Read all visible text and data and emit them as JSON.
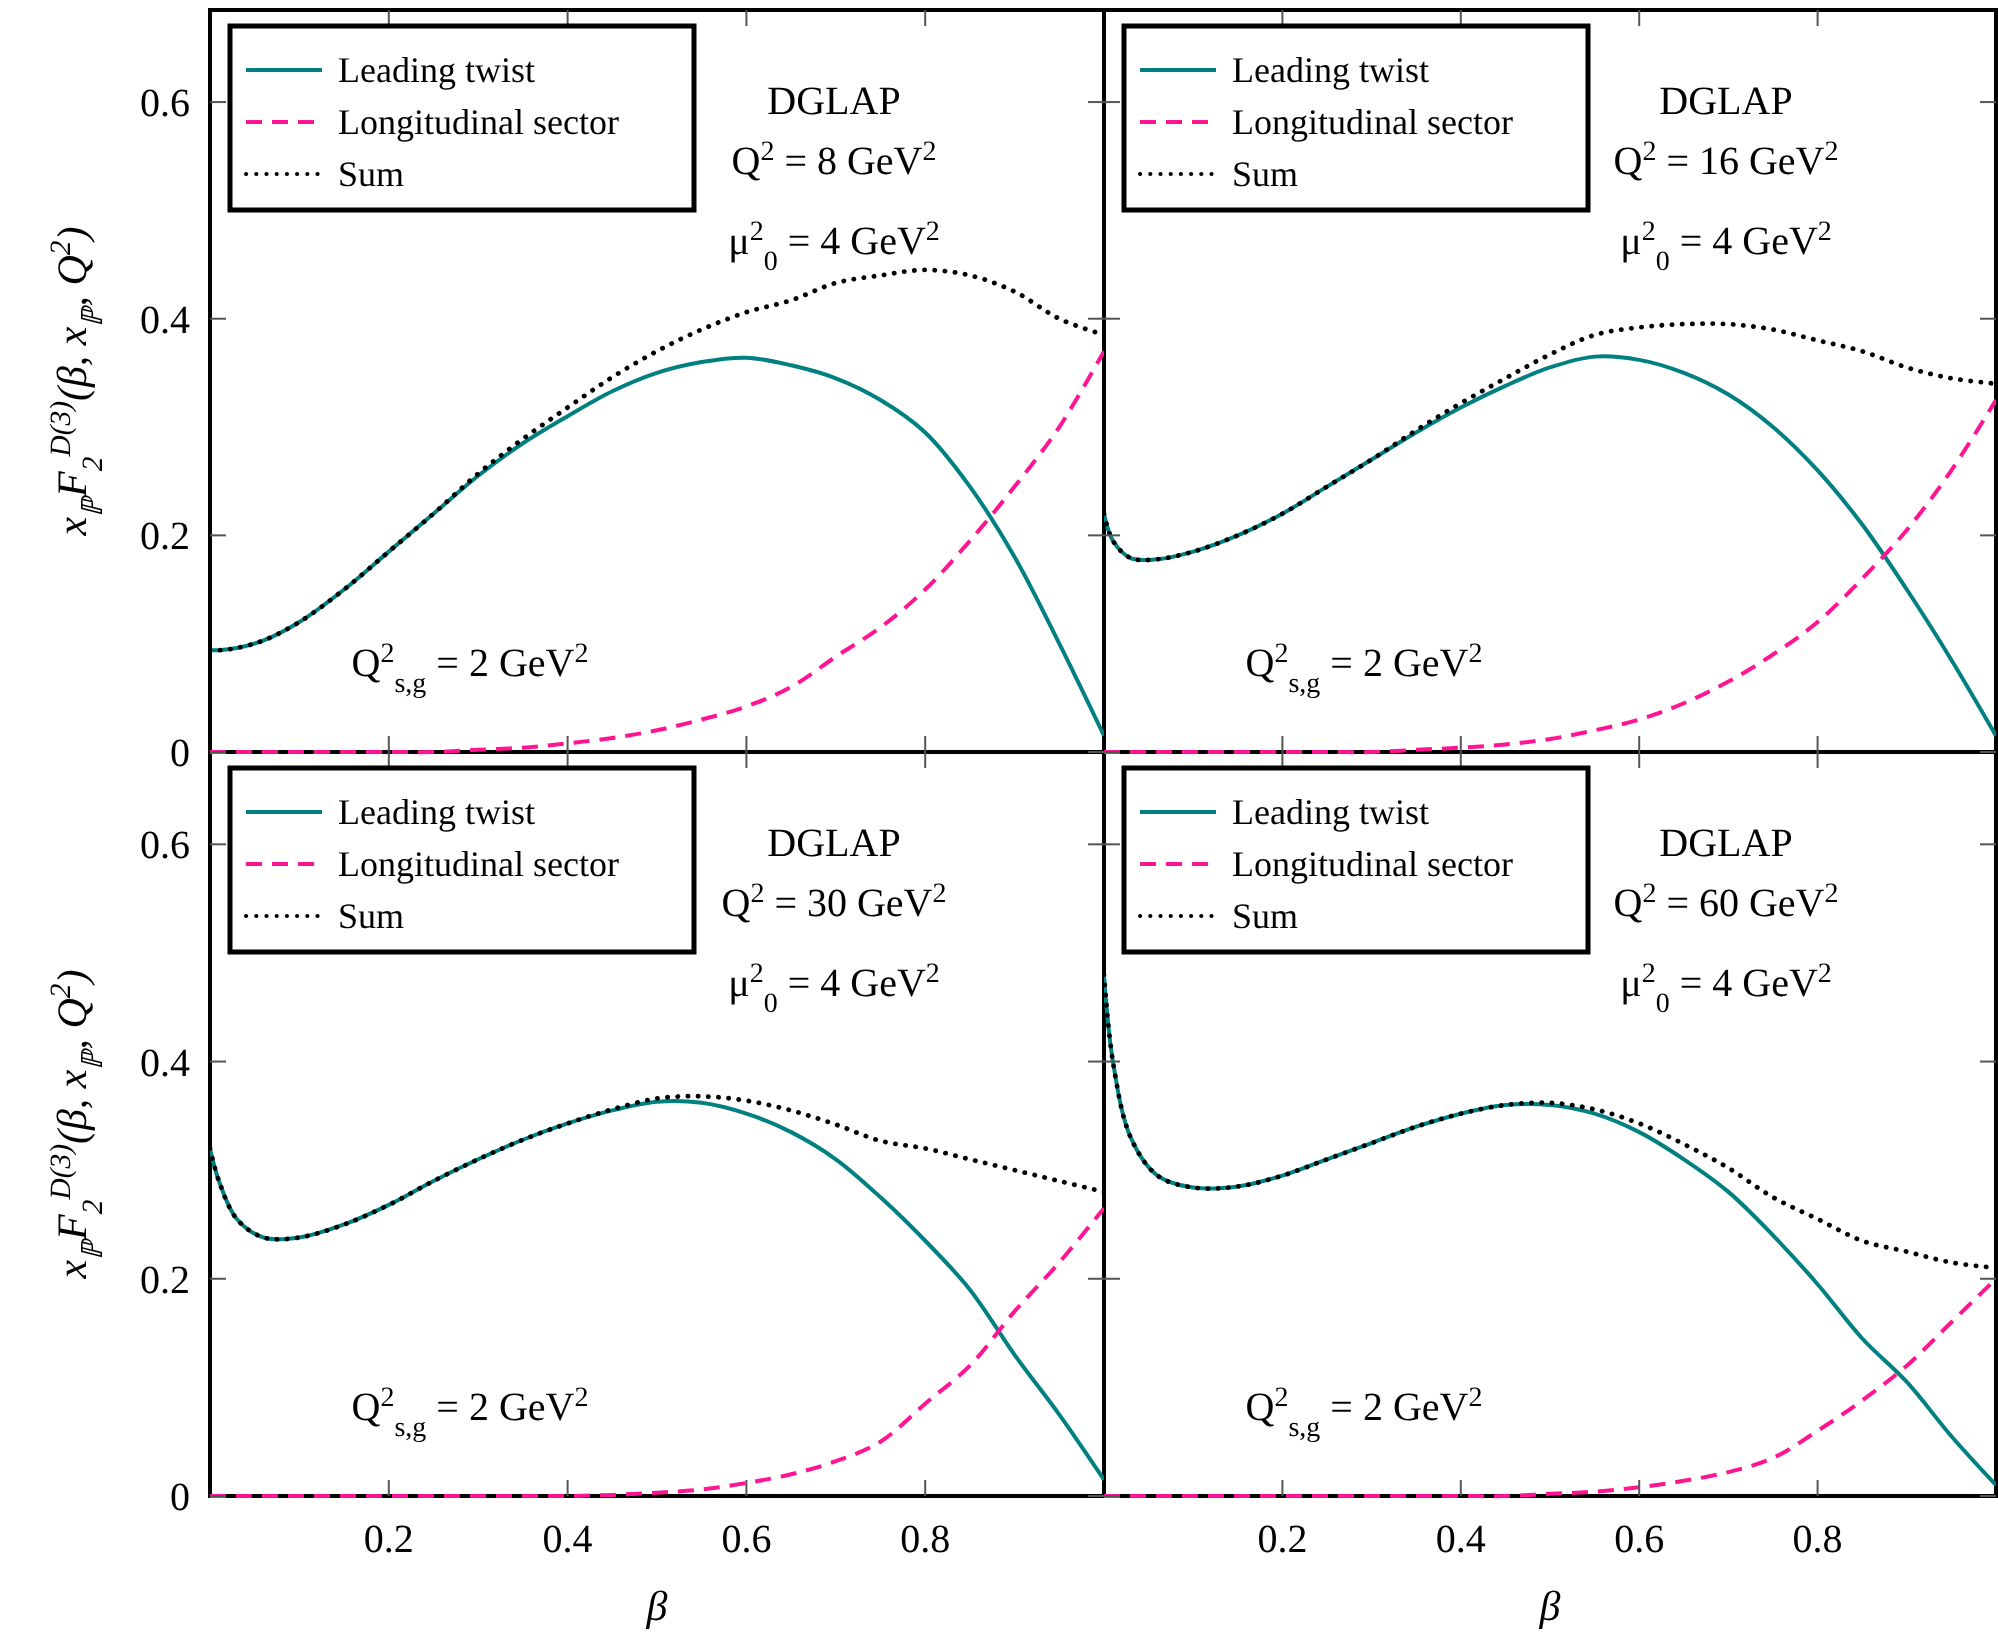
{
  "chart_data": [
    {
      "type": "line",
      "ylabel": "x$_{ℙ}$F$_{2}$$^{D(3)}$(β, x$_{ℙ}$, Q$^{2}$)",
      "x": [
        0,
        0.01,
        0.03,
        0.06,
        0.1,
        0.15,
        0.2,
        0.25,
        0.3,
        0.35,
        0.4,
        0.45,
        0.5,
        0.55,
        0.6,
        0.65,
        0.7,
        0.75,
        0.8,
        0.85,
        0.9,
        0.95,
        1
      ],
      "xlim": [
        0,
        1
      ],
      "ylim": [
        0,
        0.685
      ],
      "xticks": [
        0.2,
        0.4,
        0.6,
        0.8
      ],
      "yticks": [
        0,
        0.2,
        0.4,
        0.6
      ],
      "tick_labels": "y",
      "legend": "top left",
      "annotations": [
        "DGLAP",
        "Q$^{2}$ = 8 GeV$^{2}$",
        "μ$^{2}$$_{0}$ = 4 GeV$^{2}$",
        "Q$^{2}$$_{s,g}$ = 2 GeV$^{2}$"
      ],
      "series": [
        {
          "name": "Leading twist",
          "color": "#008080",
          "line_style": "solid",
          "values": [
            0.094,
            0.094,
            0.096,
            0.103,
            0.12,
            0.15,
            0.185,
            0.22,
            0.255,
            0.285,
            0.31,
            0.333,
            0.35,
            0.36,
            0.364,
            0.357,
            0.345,
            0.325,
            0.295,
            0.245,
            0.18,
            0.1,
            0.015
          ]
        },
        {
          "name": "Longitudinal sector",
          "color": "#ff1493",
          "line_style": "dashed",
          "values": [
            0,
            0,
            0,
            0,
            0,
            0,
            0,
            0,
            0.002,
            0.004,
            0.008,
            0.013,
            0.02,
            0.03,
            0.042,
            0.06,
            0.088,
            0.115,
            0.15,
            0.195,
            0.245,
            0.3,
            0.37
          ]
        },
        {
          "name": "Sum",
          "color": "#000000",
          "line_style": "dotted",
          "values": [
            0.094,
            0.094,
            0.096,
            0.103,
            0.12,
            0.15,
            0.185,
            0.22,
            0.257,
            0.289,
            0.318,
            0.346,
            0.37,
            0.39,
            0.406,
            0.417,
            0.433,
            0.44,
            0.445,
            0.44,
            0.425,
            0.4,
            0.385
          ]
        }
      ]
    },
    {
      "type": "line",
      "x": [
        0,
        0.01,
        0.03,
        0.06,
        0.1,
        0.15,
        0.2,
        0.25,
        0.3,
        0.35,
        0.4,
        0.45,
        0.5,
        0.55,
        0.6,
        0.65,
        0.7,
        0.75,
        0.8,
        0.85,
        0.9,
        0.95,
        1
      ],
      "xlim": [
        0,
        1
      ],
      "ylim": [
        0,
        0.685
      ],
      "xticks": [
        0.2,
        0.4,
        0.6,
        0.8
      ],
      "yticks": [
        0,
        0.2,
        0.4,
        0.6
      ],
      "tick_labels": false,
      "legend": "top left",
      "annotations": [
        "DGLAP",
        "Q$^{2}$ = 16 GeV$^{2}$",
        "μ$^{2}$$_{0}$ = 4 GeV$^{2}$",
        "Q$^{2}$$_{s,g}$ = 2 GeV$^{2}$"
      ],
      "series": [
        {
          "name": "Leading twist",
          "color": "#008080",
          "line_style": "solid",
          "values": [
            0.22,
            0.195,
            0.179,
            0.178,
            0.185,
            0.2,
            0.22,
            0.245,
            0.27,
            0.295,
            0.318,
            0.338,
            0.355,
            0.365,
            0.362,
            0.35,
            0.33,
            0.3,
            0.26,
            0.21,
            0.15,
            0.085,
            0.015
          ]
        },
        {
          "name": "Longitudinal sector",
          "color": "#ff1493",
          "line_style": "dashed",
          "values": [
            0,
            0,
            0,
            0,
            0,
            0,
            0,
            0,
            0,
            0.002,
            0.004,
            0.007,
            0.012,
            0.02,
            0.03,
            0.045,
            0.065,
            0.09,
            0.12,
            0.16,
            0.205,
            0.26,
            0.325
          ]
        },
        {
          "name": "Sum",
          "color": "#000000",
          "line_style": "dotted",
          "values": [
            0.22,
            0.195,
            0.179,
            0.178,
            0.185,
            0.2,
            0.22,
            0.245,
            0.27,
            0.297,
            0.322,
            0.345,
            0.367,
            0.385,
            0.392,
            0.395,
            0.395,
            0.39,
            0.38,
            0.37,
            0.355,
            0.345,
            0.34
          ]
        }
      ]
    },
    {
      "type": "line",
      "xlabel": "β",
      "ylabel": "x$_{ℙ}$F$_{2}$$^{D(3)}$(β, x$_{ℙ}$, Q$^{2}$)",
      "x": [
        0,
        0.01,
        0.03,
        0.06,
        0.1,
        0.15,
        0.2,
        0.25,
        0.3,
        0.35,
        0.4,
        0.45,
        0.5,
        0.55,
        0.6,
        0.65,
        0.7,
        0.75,
        0.8,
        0.85,
        0.9,
        0.95,
        1
      ],
      "xlim": [
        0,
        1
      ],
      "ylim": [
        0,
        0.685
      ],
      "xticks": [
        0.2,
        0.4,
        0.6,
        0.8
      ],
      "yticks": [
        0,
        0.2,
        0.4,
        0.6
      ],
      "legend": "top left",
      "annotations": [
        "DGLAP",
        "Q$^{2}$ = 30 GeV$^{2}$",
        "μ$^{2}$$_{0}$ = 4 GeV$^{2}$",
        "Q$^{2}$$_{s,g}$ = 2 GeV$^{2}$"
      ],
      "series": [
        {
          "name": "Leading twist",
          "color": "#008080",
          "line_style": "solid",
          "values": [
            0.32,
            0.29,
            0.255,
            0.238,
            0.238,
            0.25,
            0.268,
            0.29,
            0.31,
            0.328,
            0.343,
            0.355,
            0.363,
            0.362,
            0.352,
            0.335,
            0.31,
            0.275,
            0.235,
            0.19,
            0.13,
            0.075,
            0.015
          ]
        },
        {
          "name": "Longitudinal sector",
          "color": "#ff1493",
          "line_style": "dashed",
          "values": [
            0,
            0,
            0,
            0,
            0,
            0,
            0,
            0,
            0,
            0,
            0,
            0.001,
            0.003,
            0.006,
            0.012,
            0.02,
            0.032,
            0.05,
            0.085,
            0.12,
            0.17,
            0.215,
            0.265
          ]
        },
        {
          "name": "Sum",
          "color": "#000000",
          "line_style": "dotted",
          "values": [
            0.32,
            0.29,
            0.255,
            0.238,
            0.238,
            0.25,
            0.268,
            0.29,
            0.31,
            0.328,
            0.343,
            0.356,
            0.366,
            0.368,
            0.364,
            0.355,
            0.342,
            0.327,
            0.32,
            0.31,
            0.3,
            0.29,
            0.28
          ]
        }
      ]
    },
    {
      "type": "line",
      "xlabel": "β",
      "x": [
        0,
        0.01,
        0.03,
        0.06,
        0.1,
        0.15,
        0.2,
        0.25,
        0.3,
        0.35,
        0.4,
        0.45,
        0.5,
        0.55,
        0.6,
        0.65,
        0.7,
        0.75,
        0.8,
        0.85,
        0.9,
        0.95,
        1
      ],
      "xlim": [
        0,
        1
      ],
      "ylim": [
        0,
        0.685
      ],
      "xticks": [
        0.2,
        0.4,
        0.6,
        0.8
      ],
      "yticks": [
        0,
        0.2,
        0.4,
        0.6
      ],
      "tick_labels": "x",
      "legend": "top left",
      "annotations": [
        "DGLAP",
        "Q$^{2}$ = 60 GeV$^{2}$",
        "μ$^{2}$$_{0}$ = 4 GeV$^{2}$",
        "Q$^{2}$$_{s,g}$ = 2 GeV$^{2}$"
      ],
      "series": [
        {
          "name": "Leading twist",
          "color": "#008080",
          "line_style": "solid",
          "values": [
            0.48,
            0.4,
            0.33,
            0.295,
            0.284,
            0.285,
            0.295,
            0.31,
            0.325,
            0.34,
            0.352,
            0.36,
            0.36,
            0.352,
            0.335,
            0.31,
            0.28,
            0.24,
            0.195,
            0.145,
            0.105,
            0.055,
            0.01
          ]
        },
        {
          "name": "Longitudinal sector",
          "color": "#ff1493",
          "line_style": "dashed",
          "values": [
            0,
            0,
            0,
            0,
            0,
            0,
            0,
            0,
            0,
            0,
            0,
            0,
            0.002,
            0.004,
            0.008,
            0.014,
            0.022,
            0.035,
            0.06,
            0.088,
            0.12,
            0.16,
            0.2
          ]
        },
        {
          "name": "Sum",
          "color": "#000000",
          "line_style": "dotted",
          "values": [
            0.48,
            0.4,
            0.33,
            0.295,
            0.284,
            0.285,
            0.295,
            0.31,
            0.325,
            0.34,
            0.352,
            0.36,
            0.362,
            0.356,
            0.343,
            0.324,
            0.302,
            0.275,
            0.255,
            0.235,
            0.225,
            0.215,
            0.21
          ]
        }
      ]
    }
  ]
}
